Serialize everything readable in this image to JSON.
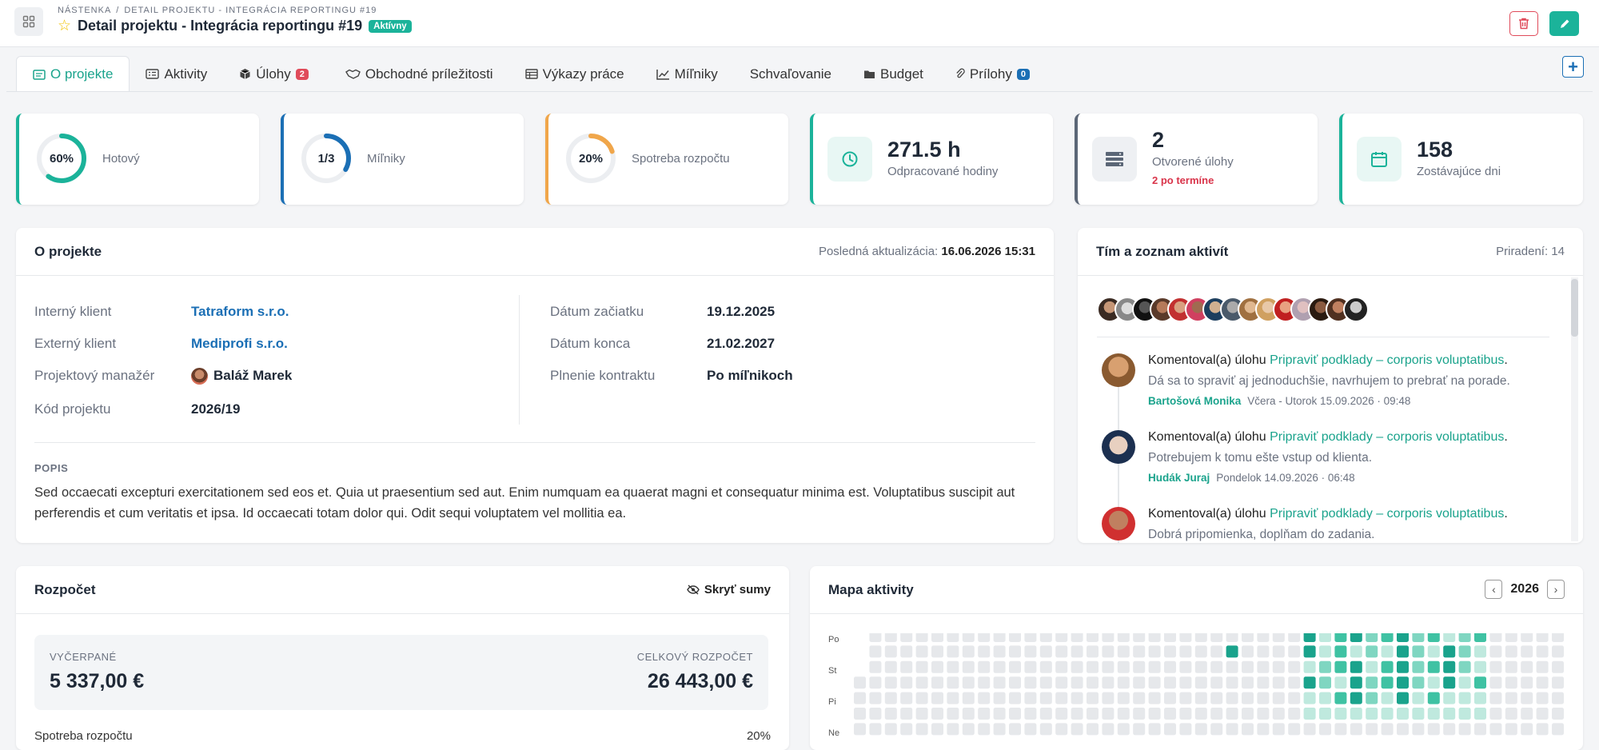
{
  "breadcrumb": {
    "root": "NÁSTENKA",
    "current": "DETAIL PROJEKTU - INTEGRÁCIA REPORTINGU #19"
  },
  "page": {
    "title": "Detail projektu - Integrácia reportingu #19",
    "status": "Aktívny"
  },
  "colors": {
    "accent": "#1bb39a",
    "primary": "#1b6fb5",
    "danger": "#d9344a",
    "warning": "#f0a64a"
  },
  "tabs": [
    {
      "label": "O projekte",
      "icon": "id-card-icon",
      "active": true
    },
    {
      "label": "Aktivity",
      "icon": "list-icon"
    },
    {
      "label": "Úlohy",
      "icon": "cube-icon",
      "count": "2",
      "count_color": "#e04b5a"
    },
    {
      "label": "Obchodné príležitosti",
      "icon": "handshake-icon"
    },
    {
      "label": "Výkazy práce",
      "icon": "table-icon"
    },
    {
      "label": "Míľniky",
      "icon": "chart-line-icon"
    },
    {
      "label": "Schvaľovanie",
      "icon": ""
    },
    {
      "label": "Budget",
      "icon": "folder-icon"
    },
    {
      "label": "Prílohy",
      "icon": "paperclip-icon",
      "count": "0",
      "count_color": "#1b6fb5"
    }
  ],
  "stats": {
    "done": {
      "value": "60%",
      "label": "Hotový",
      "fraction": 0.6
    },
    "milestones": {
      "value": "1/3",
      "label": "Míľniky",
      "fraction": 0.333
    },
    "budget": {
      "value": "20%",
      "label": "Spotreba rozpočtu",
      "fraction": 0.2
    },
    "hours": {
      "value": "271.5 h",
      "label": "Odpracované hodiny"
    },
    "tasks": {
      "value": "2",
      "label": "Otvorené úlohy",
      "warn": "2 po termíne"
    },
    "days": {
      "value": "158",
      "label": "Zostávajúce dni"
    }
  },
  "about": {
    "title": "O projekte",
    "updated_label": "Posledná aktualizácia:",
    "updated_value": "16.06.2026 15:31",
    "internal_client_label": "Interný klient",
    "internal_client": "Tatraform s.r.o.",
    "external_client_label": "Externý klient",
    "external_client": "Mediprofi s.r.o.",
    "manager_label": "Projektový manažér",
    "manager": "Baláž Marek",
    "code_label": "Kód projektu",
    "code": "2026/19",
    "start_label": "Dátum začiatku",
    "start": "19.12.2025",
    "end_label": "Dátum konca",
    "end": "21.02.2027",
    "fulfillment_label": "Plnenie kontraktu",
    "fulfillment": "Po míľnikoch",
    "desc_title": "POPIS",
    "desc": "Sed occaecati excepturi exercitationem sed eos et. Quia ut praesentium sed aut. Enim numquam ea quaerat magni et consequatur minima est. Voluptatibus suscipit aut perferendis et cum veritatis et ipsa. Id occaecati totam dolor qui. Odit sequi voluptatem vel mollitia ea."
  },
  "team": {
    "title": "Tím a zoznam aktivít",
    "assigned": "Priradení: 14",
    "activities": [
      {
        "action": "Komentoval(a) úlohu",
        "task": "Pripraviť podklady – corporis voluptatibus",
        "comment": "Dá sa to spraviť aj jednoduchšie, navrhujem to prebrať na porade.",
        "user": "Bartošová Monika",
        "time": "Včera - Utorok 15.09.2026 · 09:48"
      },
      {
        "action": "Komentoval(a) úlohu",
        "task": "Pripraviť podklady – corporis voluptatibus",
        "comment": "Potrebujem k tomu ešte vstup od klienta.",
        "user": "Hudák Juraj",
        "time": "Pondelok 14.09.2026 · 06:48"
      },
      {
        "action": "Komentoval(a) úlohu",
        "task": "Pripraviť podklady – corporis voluptatibus",
        "comment": "Dobrá pripomienka, doplňam do zadania.",
        "user": "",
        "time": ""
      }
    ]
  },
  "budget": {
    "title": "Rozpočet",
    "toggle": "Skryť sumy",
    "spent_label": "VYČERPANÉ",
    "spent": "5 337,00 €",
    "total_label": "CELKOVÝ ROZPOČET",
    "total": "26 443,00 €",
    "usage_label": "Spotreba rozpočtu",
    "usage": "20%"
  },
  "activity_map": {
    "title": "Mapa aktivity",
    "year": "2026",
    "days": [
      "Po",
      "St",
      "Pi",
      "Ne"
    ]
  }
}
